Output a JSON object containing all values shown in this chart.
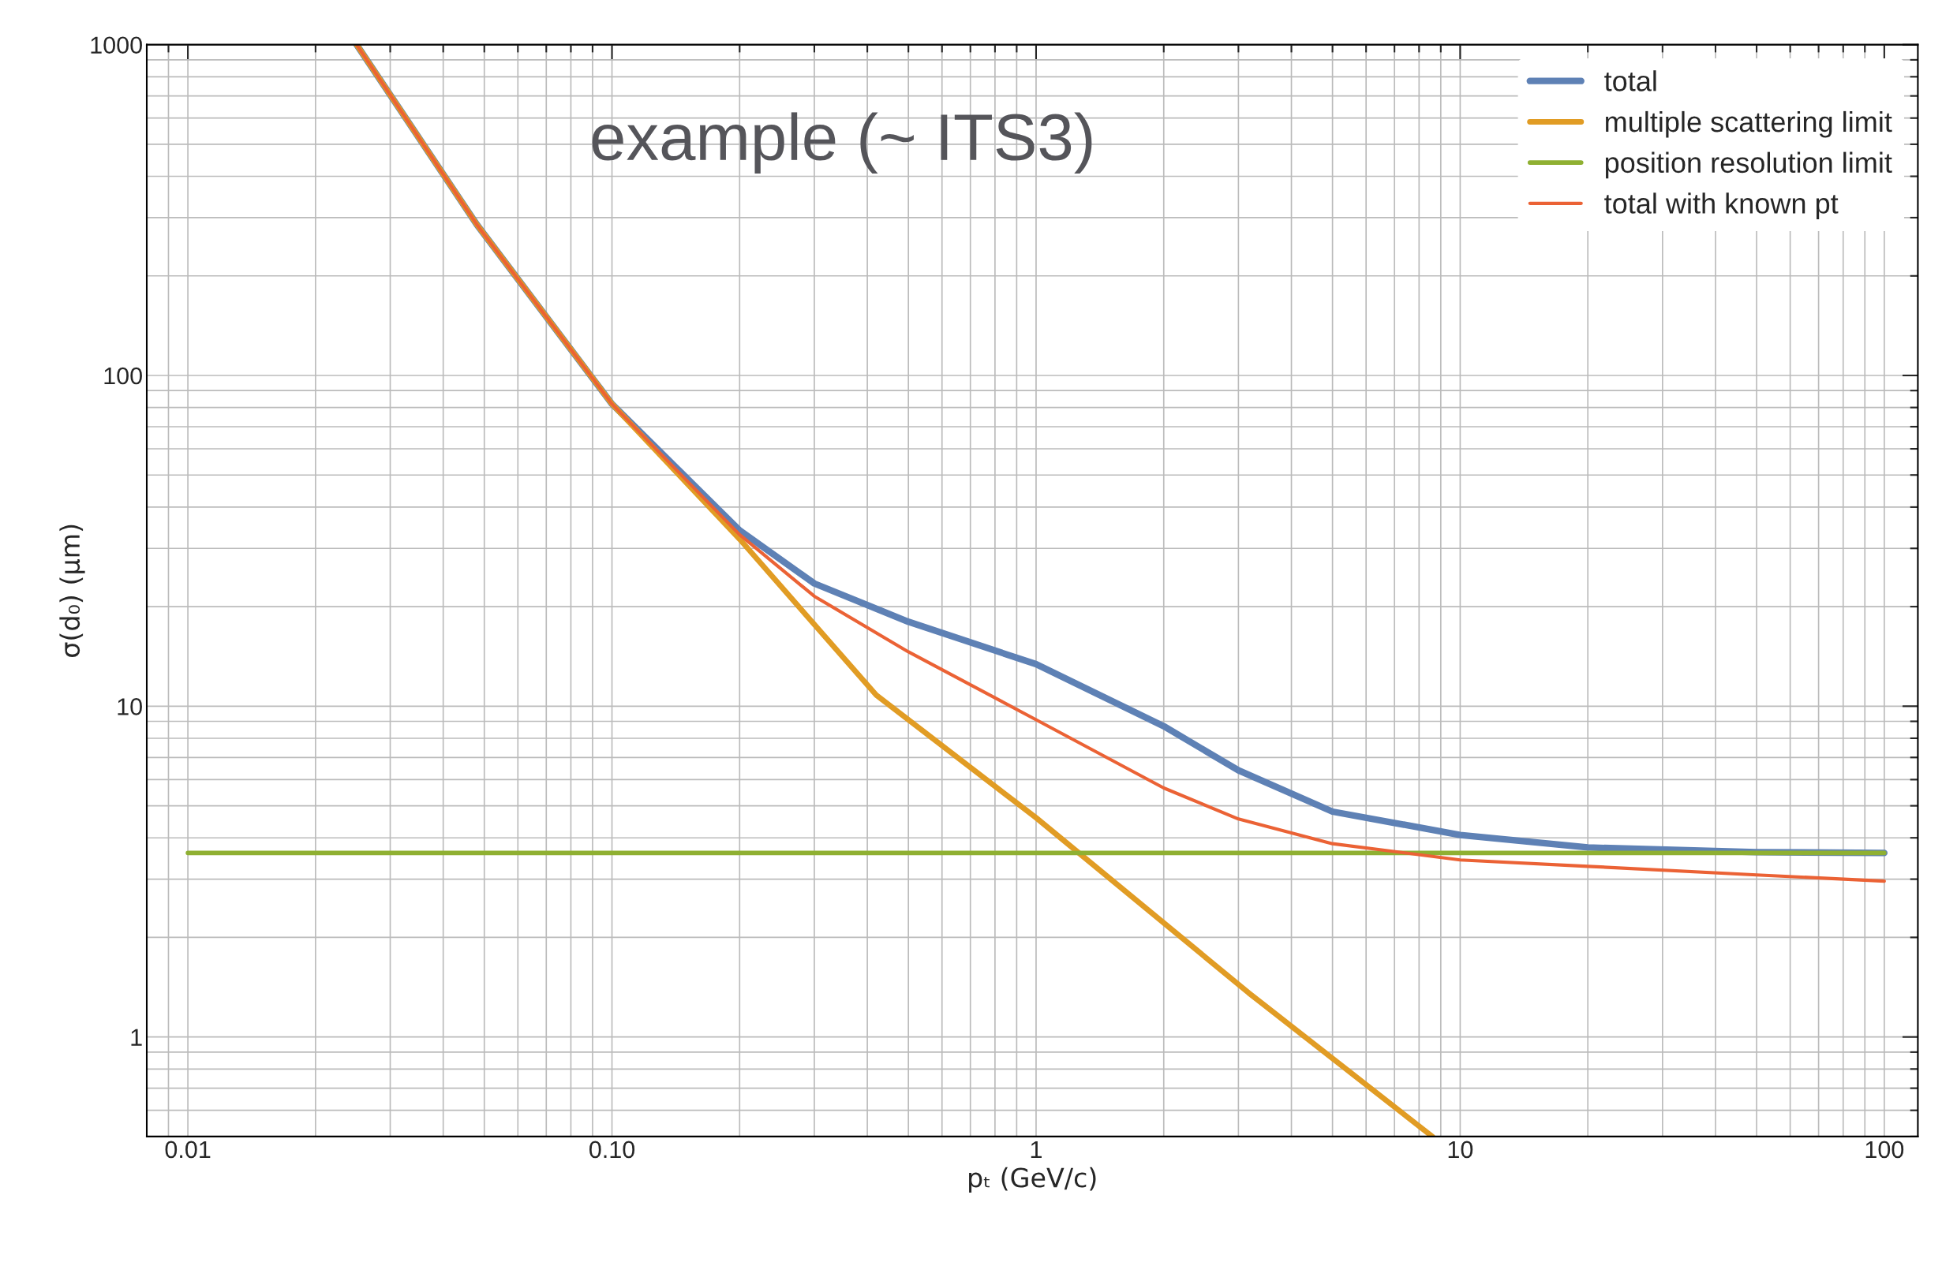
{
  "chart_data": {
    "type": "line",
    "xlabel": "pₜ (GeV/c)",
    "ylabel": "σ(d₀) (μm)",
    "annotations": [
      "example (~ ITS3)"
    ],
    "log": "xy",
    "xlim": [
      0.008,
      120
    ],
    "ylim": [
      0.5,
      1000
    ],
    "xticks": [
      0.01,
      {
        "value": 0.1,
        "label": "0.10"
      },
      1,
      10,
      100
    ],
    "yticks": [
      1,
      10,
      100,
      1000
    ],
    "grid": true,
    "legend": "top right",
    "line_style": "solid",
    "marker": "none",
    "series": [
      {
        "name": "total",
        "color": "#5e81b5",
        "x": [
          0.025,
          0.048,
          0.1,
          0.2,
          0.3,
          0.5,
          1,
          2,
          3,
          5,
          10,
          20,
          50,
          100
        ],
        "values": [
          1000,
          286,
          82,
          34,
          23.5,
          18,
          13.4,
          8.7,
          6.4,
          4.8,
          4.08,
          3.74,
          3.62,
          3.6
        ]
      },
      {
        "name": "multiple scattering limit",
        "color": "#e19c24",
        "x": [
          0.025,
          0.048,
          0.1,
          0.2,
          0.42,
          1,
          3.17,
          8.6
        ],
        "values": [
          1000,
          286,
          82,
          32,
          10.8,
          4.6,
          1.36,
          0.5
        ]
      },
      {
        "name": "position resolution limit",
        "color": "#8fb032",
        "x": [
          0.01,
          100
        ],
        "values": [
          3.6,
          3.6
        ]
      },
      {
        "name": "total with known pt",
        "color": "#eb6235",
        "x": [
          0.025,
          0.048,
          0.1,
          0.2,
          0.3,
          0.5,
          1,
          2,
          3,
          5,
          10,
          20,
          50,
          100
        ],
        "values": [
          1000,
          286,
          82,
          33,
          21.5,
          14.6,
          9.1,
          5.66,
          4.56,
          3.84,
          3.43,
          3.28,
          3.09,
          2.96
        ]
      }
    ]
  }
}
